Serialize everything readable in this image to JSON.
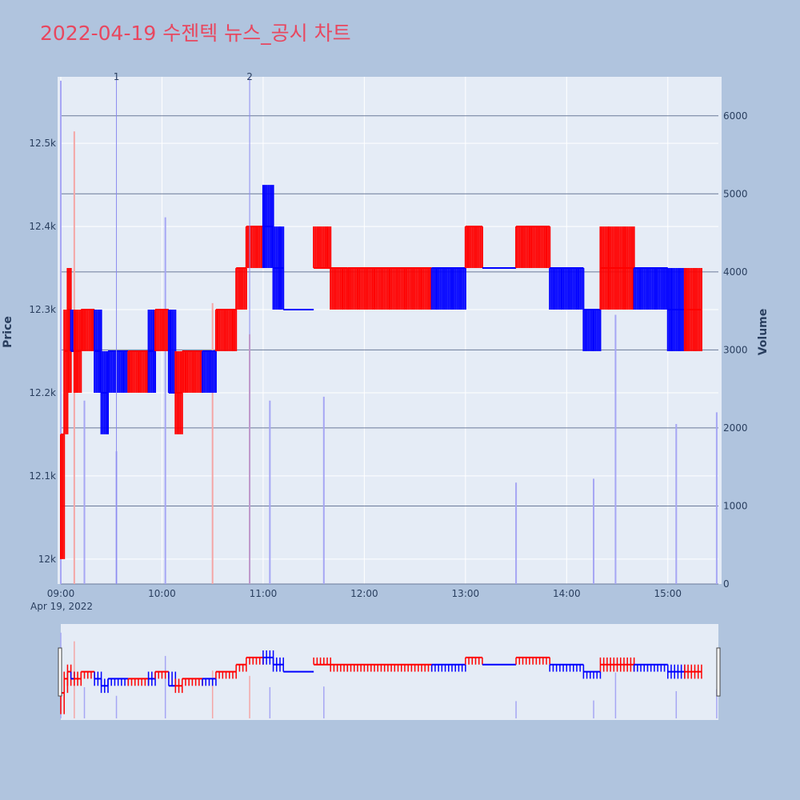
{
  "title": "2022-04-19 수젠텍 뉴스_공시 차트",
  "colors": {
    "background": "#b0c4de",
    "plot_background": "#e5ecf6",
    "title": "#e8475f",
    "up": "#ff0000",
    "down": "#0000ff",
    "volume_up": "#f4a6a6",
    "volume_down": "#a6a6f4",
    "grid": "#ffffff",
    "volume_grid": "#6b7a99",
    "marker_line": "#8a8af0"
  },
  "chart_data": {
    "type": "ohlc-volume",
    "title": "2022-04-19 수젠텍 뉴스_공시 차트",
    "x_range": [
      "09:00",
      "15:30"
    ],
    "x_ticks": [
      "09:00",
      "10:00",
      "11:00",
      "12:00",
      "13:00",
      "14:00",
      "15:00"
    ],
    "x_date_label": "Apr 19, 2022",
    "y_label": "Price",
    "y_range": [
      11970,
      12580
    ],
    "y_ticks": [
      12000,
      12100,
      12200,
      12300,
      12400,
      12500
    ],
    "y_tick_labels": [
      "12k",
      "12.1k",
      "12.2k",
      "12.3k",
      "12.4k",
      "12.5k"
    ],
    "y2_label": "Volume",
    "y2_range": [
      0,
      6500
    ],
    "y2_ticks": [
      0,
      1000,
      2000,
      3000,
      4000,
      5000,
      6000
    ],
    "markers": [
      {
        "label": "1",
        "time": "09:33"
      },
      {
        "label": "2",
        "time": "10:52"
      }
    ],
    "price_segments": [
      {
        "start": "09:00",
        "end": "09:02",
        "low": 12000,
        "high": 12150,
        "level": 12150,
        "dir": "up"
      },
      {
        "start": "09:02",
        "end": "09:04",
        "low": 12150,
        "high": 12300,
        "level": 12250,
        "dir": "up"
      },
      {
        "start": "09:04",
        "end": "09:06",
        "low": 12200,
        "high": 12350,
        "level": 12300,
        "dir": "up"
      },
      {
        "start": "09:06",
        "end": "09:08",
        "low": 12250,
        "high": 12300,
        "level": 12250,
        "dir": "down"
      },
      {
        "start": "09:08",
        "end": "09:12",
        "low": 12200,
        "high": 12300,
        "level": 12250,
        "dir": "up"
      },
      {
        "start": "09:12",
        "end": "09:20",
        "low": 12250,
        "high": 12300,
        "level": 12300,
        "dir": "up"
      },
      {
        "start": "09:20",
        "end": "09:24",
        "low": 12200,
        "high": 12300,
        "level": 12250,
        "dir": "down"
      },
      {
        "start": "09:24",
        "end": "09:28",
        "low": 12150,
        "high": 12250,
        "level": 12200,
        "dir": "down"
      },
      {
        "start": "09:28",
        "end": "09:40",
        "low": 12200,
        "high": 12250,
        "level": 12250,
        "dir": "down"
      },
      {
        "start": "09:40",
        "end": "09:52",
        "low": 12200,
        "high": 12250,
        "level": 12250,
        "dir": "up"
      },
      {
        "start": "09:52",
        "end": "09:56",
        "low": 12200,
        "high": 12300,
        "level": 12250,
        "dir": "down"
      },
      {
        "start": "09:56",
        "end": "10:04",
        "low": 12250,
        "high": 12300,
        "level": 12300,
        "dir": "up"
      },
      {
        "start": "10:04",
        "end": "10:08",
        "low": 12200,
        "high": 12300,
        "level": 12200,
        "dir": "down"
      },
      {
        "start": "10:08",
        "end": "10:12",
        "low": 12150,
        "high": 12250,
        "level": 12200,
        "dir": "up"
      },
      {
        "start": "10:12",
        "end": "10:24",
        "low": 12200,
        "high": 12250,
        "level": 12250,
        "dir": "up"
      },
      {
        "start": "10:24",
        "end": "10:32",
        "low": 12200,
        "high": 12250,
        "level": 12250,
        "dir": "down"
      },
      {
        "start": "10:32",
        "end": "10:44",
        "low": 12250,
        "high": 12300,
        "level": 12300,
        "dir": "up"
      },
      {
        "start": "10:44",
        "end": "10:50",
        "low": 12300,
        "high": 12350,
        "level": 12350,
        "dir": "up"
      },
      {
        "start": "10:50",
        "end": "11:00",
        "low": 12350,
        "high": 12400,
        "level": 12400,
        "dir": "up"
      },
      {
        "start": "11:00",
        "end": "11:06",
        "low": 12350,
        "high": 12450,
        "level": 12400,
        "dir": "down"
      },
      {
        "start": "11:06",
        "end": "11:12",
        "low": 12300,
        "high": 12400,
        "level": 12350,
        "dir": "down"
      },
      {
        "start": "11:12",
        "end": "11:30",
        "low": 12300,
        "high": 12300,
        "level": 12300,
        "dir": "down"
      },
      {
        "start": "11:30",
        "end": "11:40",
        "low": 12350,
        "high": 12400,
        "level": 12350,
        "dir": "up"
      },
      {
        "start": "11:40",
        "end": "11:50",
        "low": 12300,
        "high": 12350,
        "level": 12350,
        "dir": "up"
      },
      {
        "start": "11:50",
        "end": "12:40",
        "low": 12300,
        "high": 12350,
        "level": 12350,
        "dir": "up"
      },
      {
        "start": "12:40",
        "end": "13:00",
        "low": 12300,
        "high": 12350,
        "level": 12350,
        "dir": "down"
      },
      {
        "start": "13:00",
        "end": "13:10",
        "low": 12350,
        "high": 12400,
        "level": 12400,
        "dir": "up"
      },
      {
        "start": "13:10",
        "end": "13:30",
        "low": 12350,
        "high": 12350,
        "level": 12350,
        "dir": "down"
      },
      {
        "start": "13:30",
        "end": "13:50",
        "low": 12350,
        "high": 12400,
        "level": 12400,
        "dir": "up"
      },
      {
        "start": "13:50",
        "end": "14:10",
        "low": 12300,
        "high": 12350,
        "level": 12350,
        "dir": "down"
      },
      {
        "start": "14:10",
        "end": "14:20",
        "low": 12250,
        "high": 12300,
        "level": 12300,
        "dir": "down"
      },
      {
        "start": "14:20",
        "end": "14:40",
        "low": 12300,
        "high": 12400,
        "level": 12350,
        "dir": "up"
      },
      {
        "start": "14:40",
        "end": "15:00",
        "low": 12300,
        "high": 12350,
        "level": 12350,
        "dir": "down"
      },
      {
        "start": "15:00",
        "end": "15:10",
        "low": 12250,
        "high": 12350,
        "level": 12300,
        "dir": "down"
      },
      {
        "start": "15:10",
        "end": "15:20",
        "low": 12250,
        "high": 12350,
        "level": 12300,
        "dir": "up"
      }
    ],
    "volume_spikes": [
      {
        "time": "09:00",
        "value": 6450,
        "dir": "down"
      },
      {
        "time": "09:08",
        "value": 5800,
        "dir": "up"
      },
      {
        "time": "09:14",
        "value": 2350,
        "dir": "down"
      },
      {
        "time": "09:33",
        "value": 1700,
        "dir": "down"
      },
      {
        "time": "10:02",
        "value": 4700,
        "dir": "down"
      },
      {
        "time": "10:30",
        "value": 3600,
        "dir": "up"
      },
      {
        "time": "10:52",
        "value": 3200,
        "dir": "up"
      },
      {
        "time": "11:04",
        "value": 2350,
        "dir": "down"
      },
      {
        "time": "11:36",
        "value": 2400,
        "dir": "down"
      },
      {
        "time": "13:30",
        "value": 1300,
        "dir": "down"
      },
      {
        "time": "14:16",
        "value": 1350,
        "dir": "down"
      },
      {
        "time": "14:29",
        "value": 3450,
        "dir": "down"
      },
      {
        "time": "15:05",
        "value": 2050,
        "dir": "down"
      },
      {
        "time": "15:29",
        "value": 2200,
        "dir": "down"
      }
    ]
  }
}
